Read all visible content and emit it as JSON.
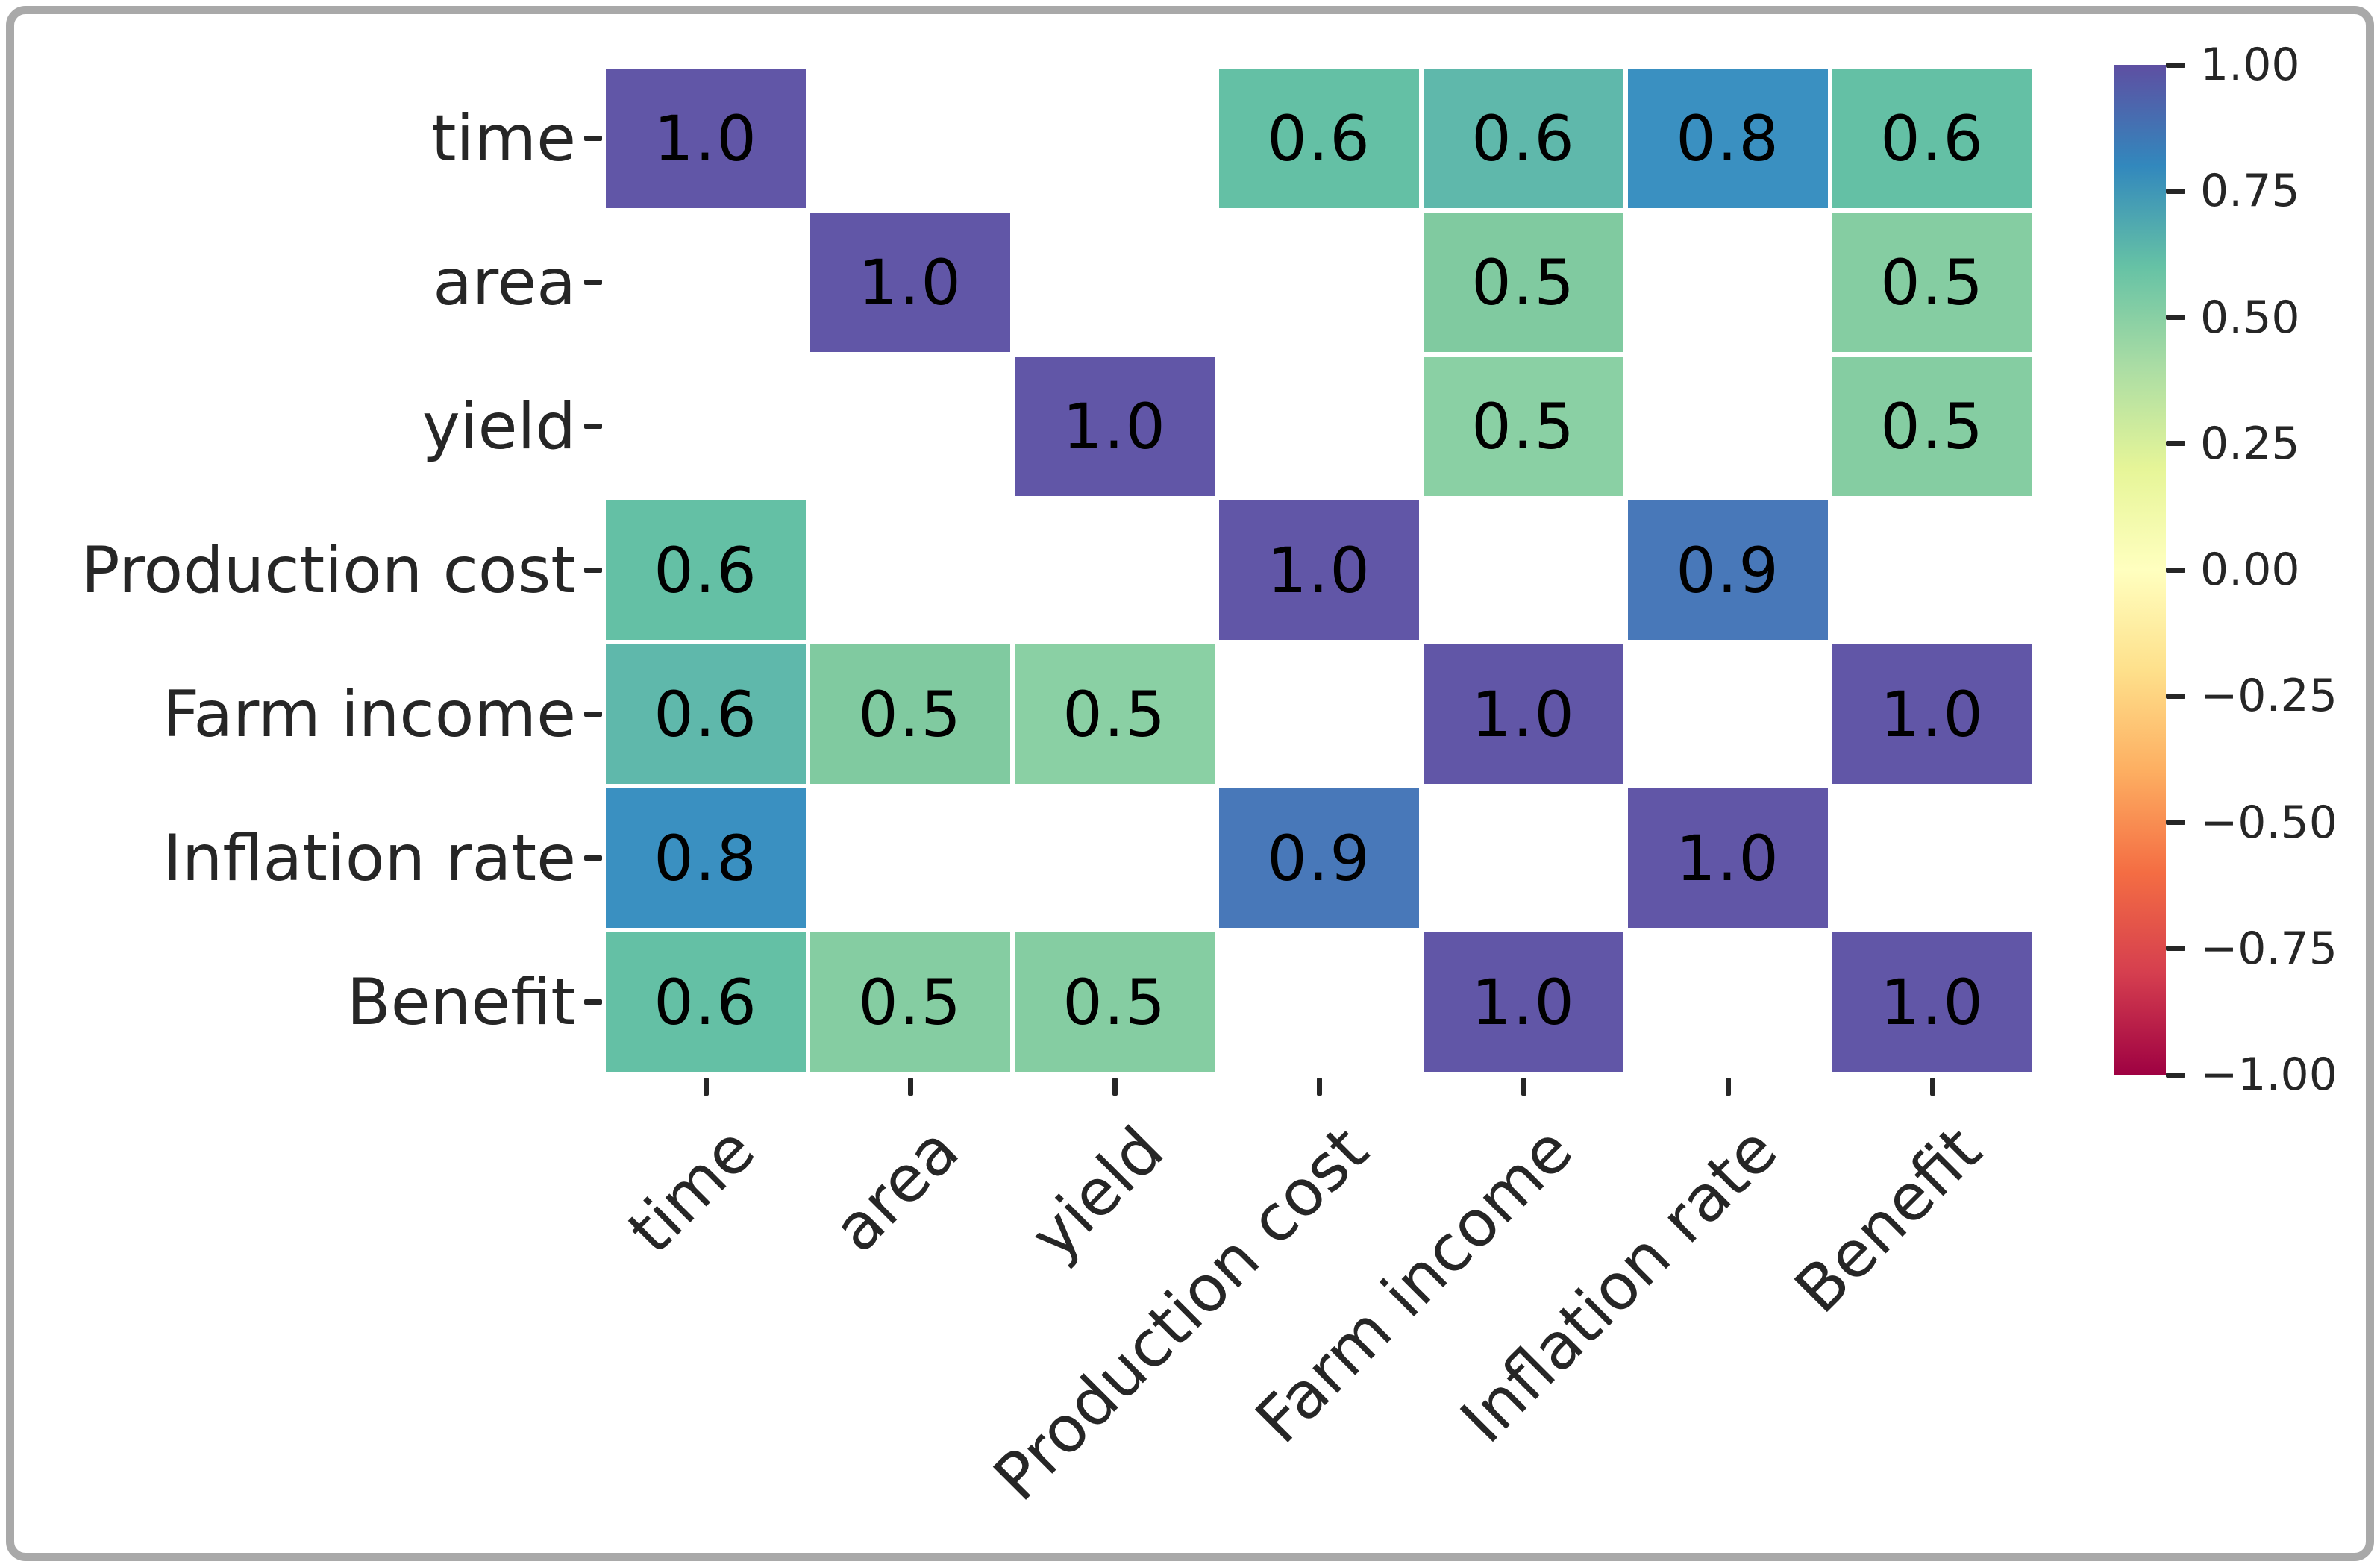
{
  "figure": {
    "kind": "correlation-heatmap-screenshot",
    "background_color": "#ffffff",
    "frame_border_color": "#a9a9a9"
  },
  "chart_data": {
    "type": "heatmap",
    "title": "",
    "xlabel": "",
    "ylabel": "",
    "legend_position": "colorbar-right",
    "grid": false,
    "categories": [
      "time",
      "area",
      "yield",
      "Production cost",
      "Farm income",
      "Inflation rate",
      "Benefit"
    ],
    "annotation_text_color": "#000000",
    "tick_label_color": "#262626",
    "masked_cell_color": "#ffffff",
    "cells": [
      [
        {
          "value": 1.0,
          "label": "1.0",
          "color": "#6156a7"
        },
        null,
        null,
        {
          "value": 0.6,
          "label": "0.6",
          "color": "#64c0a5"
        },
        {
          "value": 0.6,
          "label": "0.6",
          "color": "#5fb8ab"
        },
        {
          "value": 0.8,
          "label": "0.8",
          "color": "#3a90c1"
        },
        {
          "value": 0.6,
          "label": "0.6",
          "color": "#64c0a5"
        }
      ],
      [
        null,
        {
          "value": 1.0,
          "label": "1.0",
          "color": "#6156a7"
        },
        null,
        null,
        {
          "value": 0.5,
          "label": "0.5",
          "color": "#80caa0"
        },
        null,
        {
          "value": 0.5,
          "label": "0.5",
          "color": "#85cda2"
        }
      ],
      [
        null,
        null,
        {
          "value": 1.0,
          "label": "1.0",
          "color": "#6156a7"
        },
        null,
        {
          "value": 0.5,
          "label": "0.5",
          "color": "#8ad0a4"
        },
        null,
        {
          "value": 0.5,
          "label": "0.5",
          "color": "#85cda2"
        }
      ],
      [
        {
          "value": 0.6,
          "label": "0.6",
          "color": "#64c0a5"
        },
        null,
        null,
        {
          "value": 1.0,
          "label": "1.0",
          "color": "#6156a7"
        },
        null,
        {
          "value": 0.9,
          "label": "0.9",
          "color": "#4878b9"
        },
        null
      ],
      [
        {
          "value": 0.6,
          "label": "0.6",
          "color": "#5fb8ab"
        },
        {
          "value": 0.5,
          "label": "0.5",
          "color": "#80caa0"
        },
        {
          "value": 0.5,
          "label": "0.5",
          "color": "#8ad0a4"
        },
        null,
        {
          "value": 1.0,
          "label": "1.0",
          "color": "#6156a7"
        },
        null,
        {
          "value": 1.0,
          "label": "1.0",
          "color": "#6156a7"
        }
      ],
      [
        {
          "value": 0.8,
          "label": "0.8",
          "color": "#3a90c1"
        },
        null,
        null,
        {
          "value": 0.9,
          "label": "0.9",
          "color": "#4878b9"
        },
        null,
        {
          "value": 1.0,
          "label": "1.0",
          "color": "#6156a7"
        },
        null
      ],
      [
        {
          "value": 0.6,
          "label": "0.6",
          "color": "#64c0a5"
        },
        {
          "value": 0.5,
          "label": "0.5",
          "color": "#85cda2"
        },
        {
          "value": 0.5,
          "label": "0.5",
          "color": "#85cda2"
        },
        null,
        {
          "value": 1.0,
          "label": "1.0",
          "color": "#6156a7"
        },
        null,
        {
          "value": 1.0,
          "label": "1.0",
          "color": "#6156a7"
        }
      ]
    ],
    "colorbar": {
      "colormap": "Spectral",
      "min": -1.0,
      "max": 1.0,
      "tick_labels": [
        "1.00",
        "0.75",
        "0.50",
        "0.25",
        "0.00",
        "−0.25",
        "−0.50",
        "−0.75",
        "−1.00"
      ],
      "gradient_colors_top_to_bottom": [
        "#5e4fa2",
        "#3288bd",
        "#66c2a5",
        "#abdda4",
        "#e6f598",
        "#ffffbf",
        "#fee08b",
        "#fdae61",
        "#f46d43",
        "#d53e4f",
        "#9e0142"
      ],
      "gradient_positions_pct": [
        0,
        10,
        20,
        30,
        40,
        50,
        60,
        70,
        80,
        90,
        100
      ]
    }
  }
}
